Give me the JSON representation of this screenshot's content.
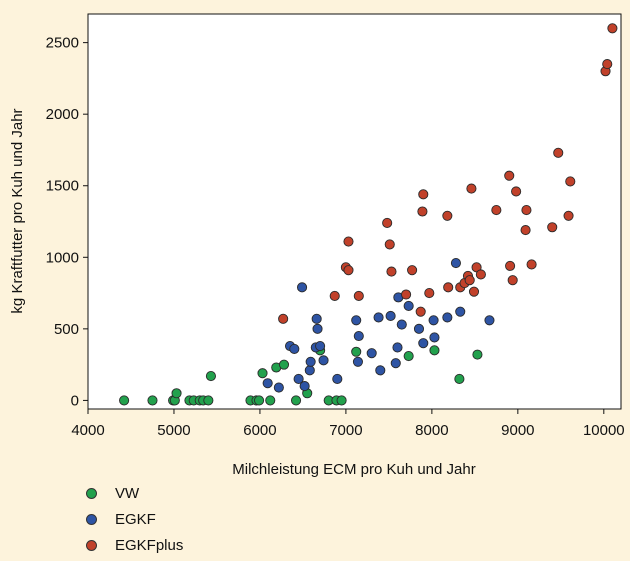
{
  "chart_data": {
    "type": "scatter",
    "xlabel": "Milchleistung ECM pro Kuh und Jahr",
    "ylabel": "kg Kraftfutter pro Kuh und Jahr",
    "xlim": [
      4000,
      10200
    ],
    "ylim": [
      -60,
      2700
    ],
    "xticks": [
      4000,
      5000,
      6000,
      7000,
      8000,
      9000,
      10000
    ],
    "yticks": [
      0,
      500,
      1000,
      1500,
      2000,
      2500
    ],
    "grid": false,
    "legend": "bottom-left",
    "series": [
      {
        "name": "VW",
        "color": "#22a14d",
        "points": [
          [
            4420,
            0
          ],
          [
            4750,
            0
          ],
          [
            4990,
            0
          ],
          [
            5010,
            0
          ],
          [
            5030,
            50
          ],
          [
            5180,
            0
          ],
          [
            5230,
            0
          ],
          [
            5300,
            0
          ],
          [
            5340,
            0
          ],
          [
            5400,
            0
          ],
          [
            5430,
            170
          ],
          [
            5890,
            0
          ],
          [
            5960,
            0
          ],
          [
            5990,
            0
          ],
          [
            6030,
            190
          ],
          [
            6120,
            0
          ],
          [
            6190,
            230
          ],
          [
            6280,
            250
          ],
          [
            6420,
            0
          ],
          [
            6550,
            50
          ],
          [
            6700,
            350
          ],
          [
            6800,
            0
          ],
          [
            6890,
            0
          ],
          [
            6950,
            0
          ],
          [
            7120,
            340
          ],
          [
            7730,
            310
          ],
          [
            8030,
            350
          ],
          [
            8320,
            150
          ],
          [
            8530,
            320
          ]
        ]
      },
      {
        "name": "EGKF",
        "color": "#2e54a4",
        "points": [
          [
            6090,
            120
          ],
          [
            6220,
            90
          ],
          [
            6350,
            380
          ],
          [
            6400,
            360
          ],
          [
            6450,
            150
          ],
          [
            6490,
            790
          ],
          [
            6520,
            100
          ],
          [
            6580,
            210
          ],
          [
            6590,
            270
          ],
          [
            6650,
            370
          ],
          [
            6660,
            570
          ],
          [
            6670,
            500
          ],
          [
            6700,
            380
          ],
          [
            6740,
            280
          ],
          [
            6900,
            150
          ],
          [
            7120,
            560
          ],
          [
            7150,
            450
          ],
          [
            7140,
            270
          ],
          [
            7300,
            330
          ],
          [
            7380,
            580
          ],
          [
            7400,
            210
          ],
          [
            7520,
            590
          ],
          [
            7580,
            260
          ],
          [
            7600,
            370
          ],
          [
            7610,
            720
          ],
          [
            7650,
            530
          ],
          [
            7730,
            660
          ],
          [
            7850,
            500
          ],
          [
            7900,
            400
          ],
          [
            8020,
            560
          ],
          [
            8030,
            440
          ],
          [
            8180,
            580
          ],
          [
            8280,
            960
          ],
          [
            8330,
            620
          ],
          [
            8670,
            560
          ]
        ]
      },
      {
        "name": "EGKFplus",
        "color": "#c1412a",
        "points": [
          [
            6270,
            570
          ],
          [
            6870,
            730
          ],
          [
            7000,
            930
          ],
          [
            7030,
            1110
          ],
          [
            7030,
            910
          ],
          [
            7150,
            730
          ],
          [
            7480,
            1240
          ],
          [
            7510,
            1090
          ],
          [
            7530,
            900
          ],
          [
            7700,
            740
          ],
          [
            7770,
            910
          ],
          [
            7870,
            620
          ],
          [
            7890,
            1320
          ],
          [
            7900,
            1440
          ],
          [
            7970,
            750
          ],
          [
            8180,
            1290
          ],
          [
            8190,
            790
          ],
          [
            8330,
            790
          ],
          [
            8380,
            820
          ],
          [
            8420,
            870
          ],
          [
            8440,
            840
          ],
          [
            8460,
            1480
          ],
          [
            8490,
            760
          ],
          [
            8520,
            930
          ],
          [
            8570,
            880
          ],
          [
            8750,
            1330
          ],
          [
            8900,
            1570
          ],
          [
            8910,
            940
          ],
          [
            8940,
            840
          ],
          [
            8980,
            1460
          ],
          [
            9090,
            1190
          ],
          [
            9100,
            1330
          ],
          [
            9160,
            950
          ],
          [
            9400,
            1210
          ],
          [
            9470,
            1730
          ],
          [
            9590,
            1290
          ],
          [
            9610,
            1530
          ],
          [
            10020,
            2300
          ],
          [
            10040,
            2350
          ],
          [
            10100,
            2600
          ]
        ]
      }
    ]
  }
}
